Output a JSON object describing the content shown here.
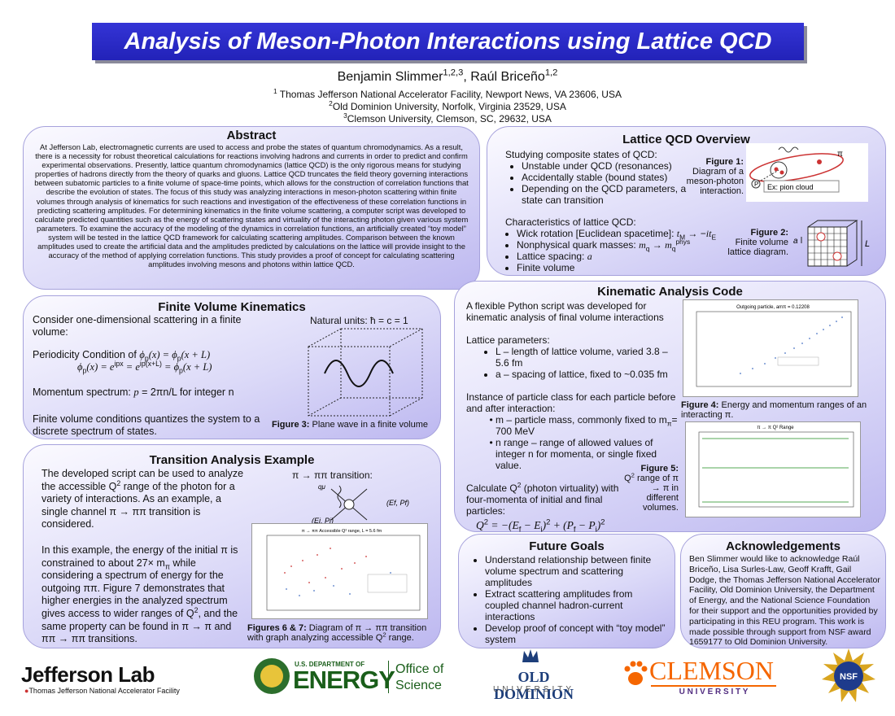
{
  "header": {
    "title": "Analysis of Meson-Photon Interactions using Lattice QCD",
    "authors": [
      "Benjamin Slimmer",
      {
        "sup": "1,2,3"
      },
      ", Raúl Briceño",
      {
        "sup": "1,2"
      }
    ],
    "affiliations": [
      [
        {
          "sup": "1"
        },
        " Thomas Jefferson National Accelerator Facility, Newport News, VA 23606, USA"
      ],
      [
        {
          "sup": "2"
        },
        "Old Dominion University, Norfolk, Virginia 23529, USA"
      ],
      [
        {
          "sup": "3"
        },
        "Clemson University, Clemson, SC, 29632, USA"
      ]
    ]
  },
  "abstract": {
    "heading": "Abstract",
    "text": "At Jefferson Lab, electromagnetic currents are used to access and probe the states of quantum chromodynamics. As a result, there is a necessity for robust theoretical calculations for reactions involving hadrons and currents in order to predict and confirm experimental observations. Presently, lattice quantum chromodynamics (lattice QCD) is the only rigorous means for studying properties of hadrons directly from the theory of quarks and gluons. Lattice QCD truncates the field theory governing interactions between subatomic particles to a finite volume of space-time points, which allows for the construction of correlation functions that describe the evolution of states. The focus of this study was analyzing interactions in meson-photon scattering within finite volumes through analysis of kinematics for such reactions and investigation of the effectiveness of these correlation functions in predicting scattering amplitudes. For determining kinematics in the finite volume scattering, a computer script was developed to calculate predicted quantities such as the energy of scattering states and virtuality of the interacting photon given various system parameters. To examine the accuracy of the modeling of the dynamics in correlation functions, an artificially created “toy model” system will be tested in the lattice QCD framework for calculating scattering amplitudes. Comparison between the known amplitudes used to create the artificial data and the amplitudes predicted by calculations on the lattice will provide insight to the accuracy of the method of applying correlation functions. This study provides a proof of concept for calculating scattering amplitudes involving mesons and photons within lattice QCD."
  },
  "overview": {
    "heading": "Lattice QCD Overview",
    "intro1": "Studying composite states of QCD:",
    "bullets1": [
      "Unstable under QCD (resonances)",
      "Accidentally stable (bound states)",
      "Depending on the QCD parameters, a state can transition"
    ],
    "intro2": "Characteristics of lattice QCD:",
    "bullets2": [
      [
        "Wick rotation [Euclidean spacetime]:  ",
        {
          "i": "t"
        },
        {
          "sub": "M"
        },
        " → −",
        {
          "i": "it"
        },
        {
          "sub": "E"
        }
      ],
      [
        "Nonphysical quark masses: ",
        {
          "i": "m"
        },
        {
          "sub": "q"
        },
        " → ",
        {
          "i": "m"
        },
        {
          "sub": "q"
        },
        {
          "sup": "phys"
        }
      ],
      [
        "Lattice spacing: ",
        {
          "i": "a"
        }
      ],
      [
        "Finite volume"
      ]
    ],
    "fig1_label": "Figure 1:",
    "fig1_caption": "Diagram of a meson-photon interaction.",
    "fig1_box": "Ex: pion cloud",
    "fig1_pi": "π",
    "fig1_p": "P",
    "fig2_label": "Figure 2:",
    "fig2_caption": "Finite volume lattice diagram.",
    "fig2_a": "a",
    "fig2_L": "L"
  },
  "fvk": {
    "heading": "Finite Volume Kinematics",
    "line1": "Consider one-dimensional scattering in a finite volume:",
    "units": "Natural units: ħ = c = 1",
    "line2": [
      "Periodicity Condition of ",
      {
        "i": "ϕ"
      },
      {
        "sub": "p"
      },
      {
        "i": "(x) = ϕ"
      },
      {
        "sub": "p"
      },
      {
        "i": "(x + L)"
      }
    ],
    "line3": [
      {
        "i": "ϕ"
      },
      {
        "sub": "p"
      },
      {
        "i": "(x) = e"
      },
      {
        "sup": "ipx"
      },
      {
        "i": " =  e"
      },
      {
        "sup": "ip(x+L)"
      },
      {
        "i": " = ϕ"
      },
      {
        "sub": "p"
      },
      {
        "i": "(x + L)"
      }
    ],
    "line4": [
      "Momentum spectrum:  ",
      {
        "i": "p"
      },
      " = 2πn/L",
      " for integer n"
    ],
    "line5": "Finite volume conditions quantizes the system to a discrete spectrum of states.",
    "fig3_label": "Figure 3:",
    "fig3_caption": " Plane wave in a finite volume"
  },
  "code": {
    "heading": "Kinematic Analysis Code",
    "intro": "A flexible Python script was developed for kinematic analysis of final volume interactions",
    "params_intro": "Lattice parameters:",
    "params": [
      "L – length of lattice volume, varied 3.8 – 5.6 fm",
      "a – spacing of lattice, fixed to ~0.035 fm"
    ],
    "class_intro": "Instance of particle class for each particle before and after interaction:",
    "class_bullets": [
      [
        "m – particle mass, commonly fixed to m",
        {
          "sub": "π"
        },
        "= 700 MeV"
      ],
      [
        "n range – range of allowed values of integer n for momenta, or single fixed value."
      ]
    ],
    "q2_intro": [
      "Calculate Q",
      {
        "sup": "2"
      },
      " (photon virtuality) with four-momenta of initial and final particles:"
    ],
    "equation": [
      {
        "i": "Q"
      },
      {
        "sup": "2"
      },
      {
        "i": " = −(E"
      },
      {
        "sub": "f"
      },
      {
        "i": " − E"
      },
      {
        "sub": "i"
      },
      {
        "i": ")"
      },
      {
        "sup": "2"
      },
      {
        "i": " + (P"
      },
      {
        "sub": "f"
      },
      {
        "i": " − P"
      },
      {
        "sub": "i"
      },
      {
        "i": ")"
      },
      {
        "sup": "2"
      }
    ],
    "fig4_title": "Outgoing particle, amπ = 0.12208",
    "fig4_label": "Figure 4:",
    "fig4_caption": " Energy and momentum ranges of an interacting π.",
    "fig5_title": "π → π Q² Range",
    "fig5_label": "Figure 5:",
    "fig5_caption": [
      "Q",
      {
        "sup": "2"
      },
      " range of π → π  in different volumes."
    ]
  },
  "transition": {
    "heading": "Transition Analysis Example",
    "para1": [
      "The developed script can be used to analyze the accessible Q",
      {
        "sup": "2"
      },
      " range of the photon for a variety of interactions. As an example, a single channel π → ππ transition is considered."
    ],
    "para2": [
      "In this example, the energy of the initial π is constrained to about 27× m",
      {
        "sub": "π"
      },
      " while considering a spectrum of energy for the outgoing ππ. Figure 7 demonstrates that higher energies in the analyzed spectrum gives access to wider ranges of Q",
      {
        "sup": "2"
      },
      ", and the same property can be found in π → π and  ππ  → ππ transitions."
    ],
    "diagram_title": "π → ππ transition:",
    "diagram_q": "qμ",
    "diagram_f": "(Ef, Pf)",
    "diagram_i": "(Ei, Pi)",
    "plot_title": "π → ππ Accessible Q² range, L = 5.6 fm",
    "fig_label": "Figures 6 & 7:",
    "fig_caption": [
      " Diagram of π → ππ transition with graph analyzing accessible Q",
      {
        "sup": "2"
      },
      " range."
    ]
  },
  "goals": {
    "heading": "Future Goals",
    "bullets": [
      "Understand relationship between finite volume spectrum and scattering amplitudes",
      "Extract scattering amplitudes from coupled channel hadron-current interactions",
      "Develop proof of concept with “toy model” system"
    ]
  },
  "ack": {
    "heading": "Acknowledgements",
    "text": "Ben Slimmer would like to acknowledge Raúl Briceño, Lisa Surles-Law, Geoff Krafft, Gail Dodge, the Thomas Jefferson National Accelerator Facility, Old Dominion University, the Department of Energy, and the National Science Foundation for their support and the opportunities provided by participating in this REU program. This work is made possible through support from NSF award 1659177 to Old Dominion University."
  },
  "logos": {
    "jlab": "Jefferson Lab",
    "jlab_sub": "Thomas Jefferson National Accelerator Facility",
    "doe_top": "U.S. DEPARTMENT OF",
    "doe": "ENERGY",
    "office1": "Office of",
    "office2": "Science",
    "odu": "OLD DOMINION",
    "odu_sub": "UNIVERSITY",
    "clemson": "CLEMSON",
    "clemson_sub": "U N I V E R S I T Y",
    "nsf": "NSF"
  }
}
